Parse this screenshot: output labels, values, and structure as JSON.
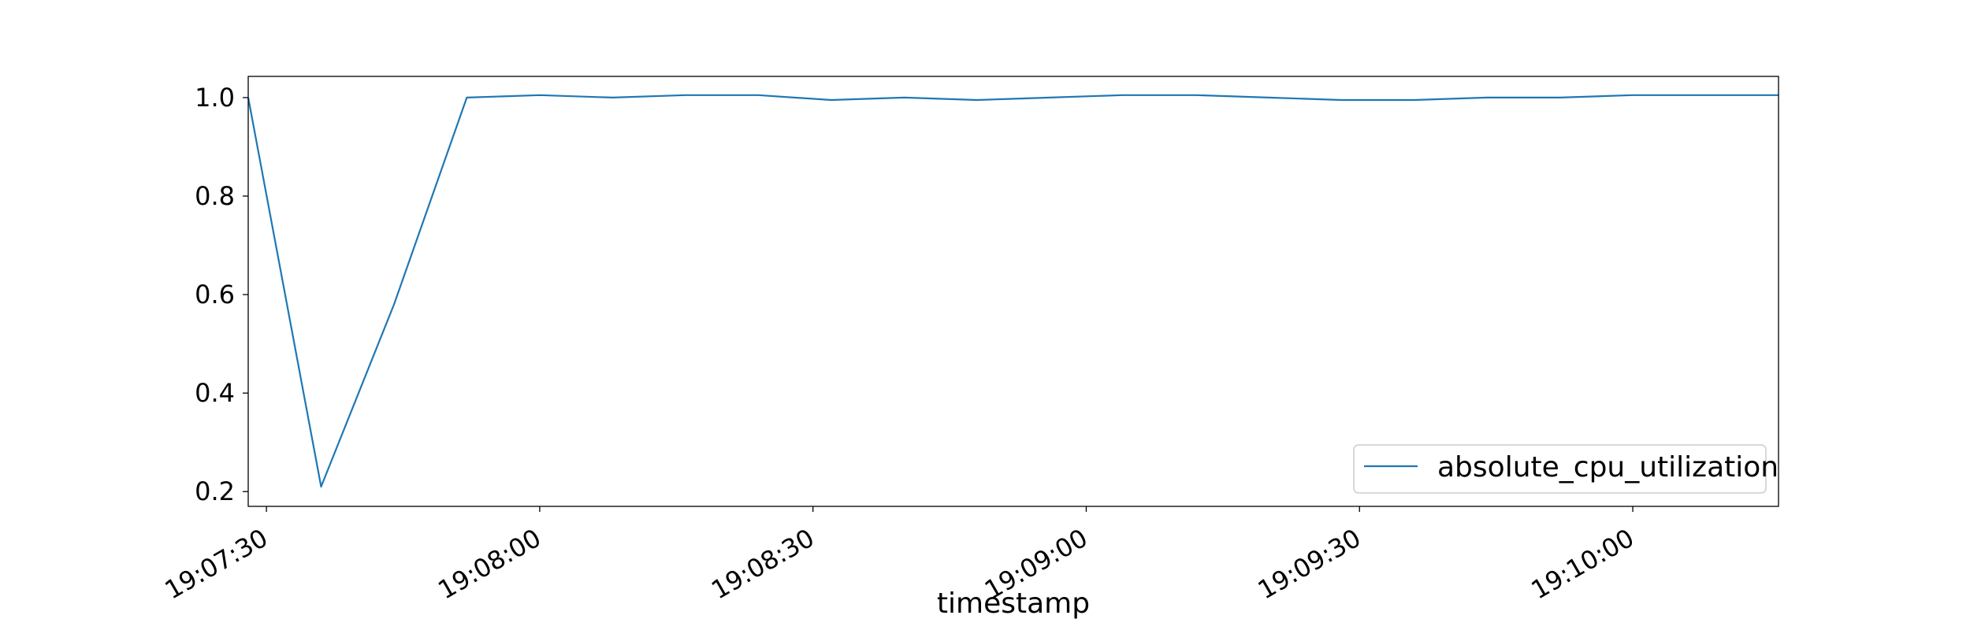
{
  "chart_data": {
    "type": "line",
    "title": "",
    "xlabel": "timestamp",
    "ylabel": "",
    "x_tick_labels": [
      "19:07:30",
      "19:08:00",
      "19:08:30",
      "19:09:00",
      "19:09:30",
      "19:10:00"
    ],
    "x_tick_values": [
      "19:07:30",
      "19:08:00",
      "19:08:30",
      "19:09:00",
      "19:09:30",
      "19:10:00"
    ],
    "y_tick_labels": [
      "0.2",
      "0.4",
      "0.6",
      "0.8",
      "1.0"
    ],
    "y_tick_values": [
      0.2,
      0.4,
      0.6,
      0.8,
      1.0
    ],
    "xlim": [
      "19:07:28",
      "19:10:16"
    ],
    "ylim": [
      0.17,
      1.043
    ],
    "grid": false,
    "legend": {
      "placement": "lower-right"
    },
    "series": [
      {
        "name": "absolute_cpu_utilization",
        "color": "#1f77b4",
        "x": [
          "19:07:28",
          "19:07:36",
          "19:07:44",
          "19:07:52",
          "19:08:00",
          "19:08:08",
          "19:08:16",
          "19:08:24",
          "19:08:32",
          "19:08:40",
          "19:08:48",
          "19:08:56",
          "19:09:04",
          "19:09:12",
          "19:09:20",
          "19:09:28",
          "19:09:36",
          "19:09:44",
          "19:09:52",
          "19:10:00",
          "19:10:08",
          "19:10:16"
        ],
        "values": [
          1.0,
          0.21,
          0.58,
          1.0,
          1.005,
          1.0,
          1.005,
          1.005,
          0.995,
          1.0,
          0.995,
          1.0,
          1.005,
          1.005,
          1.0,
          0.995,
          0.995,
          1.0,
          1.0,
          1.005,
          1.005,
          1.005
        ]
      }
    ]
  }
}
